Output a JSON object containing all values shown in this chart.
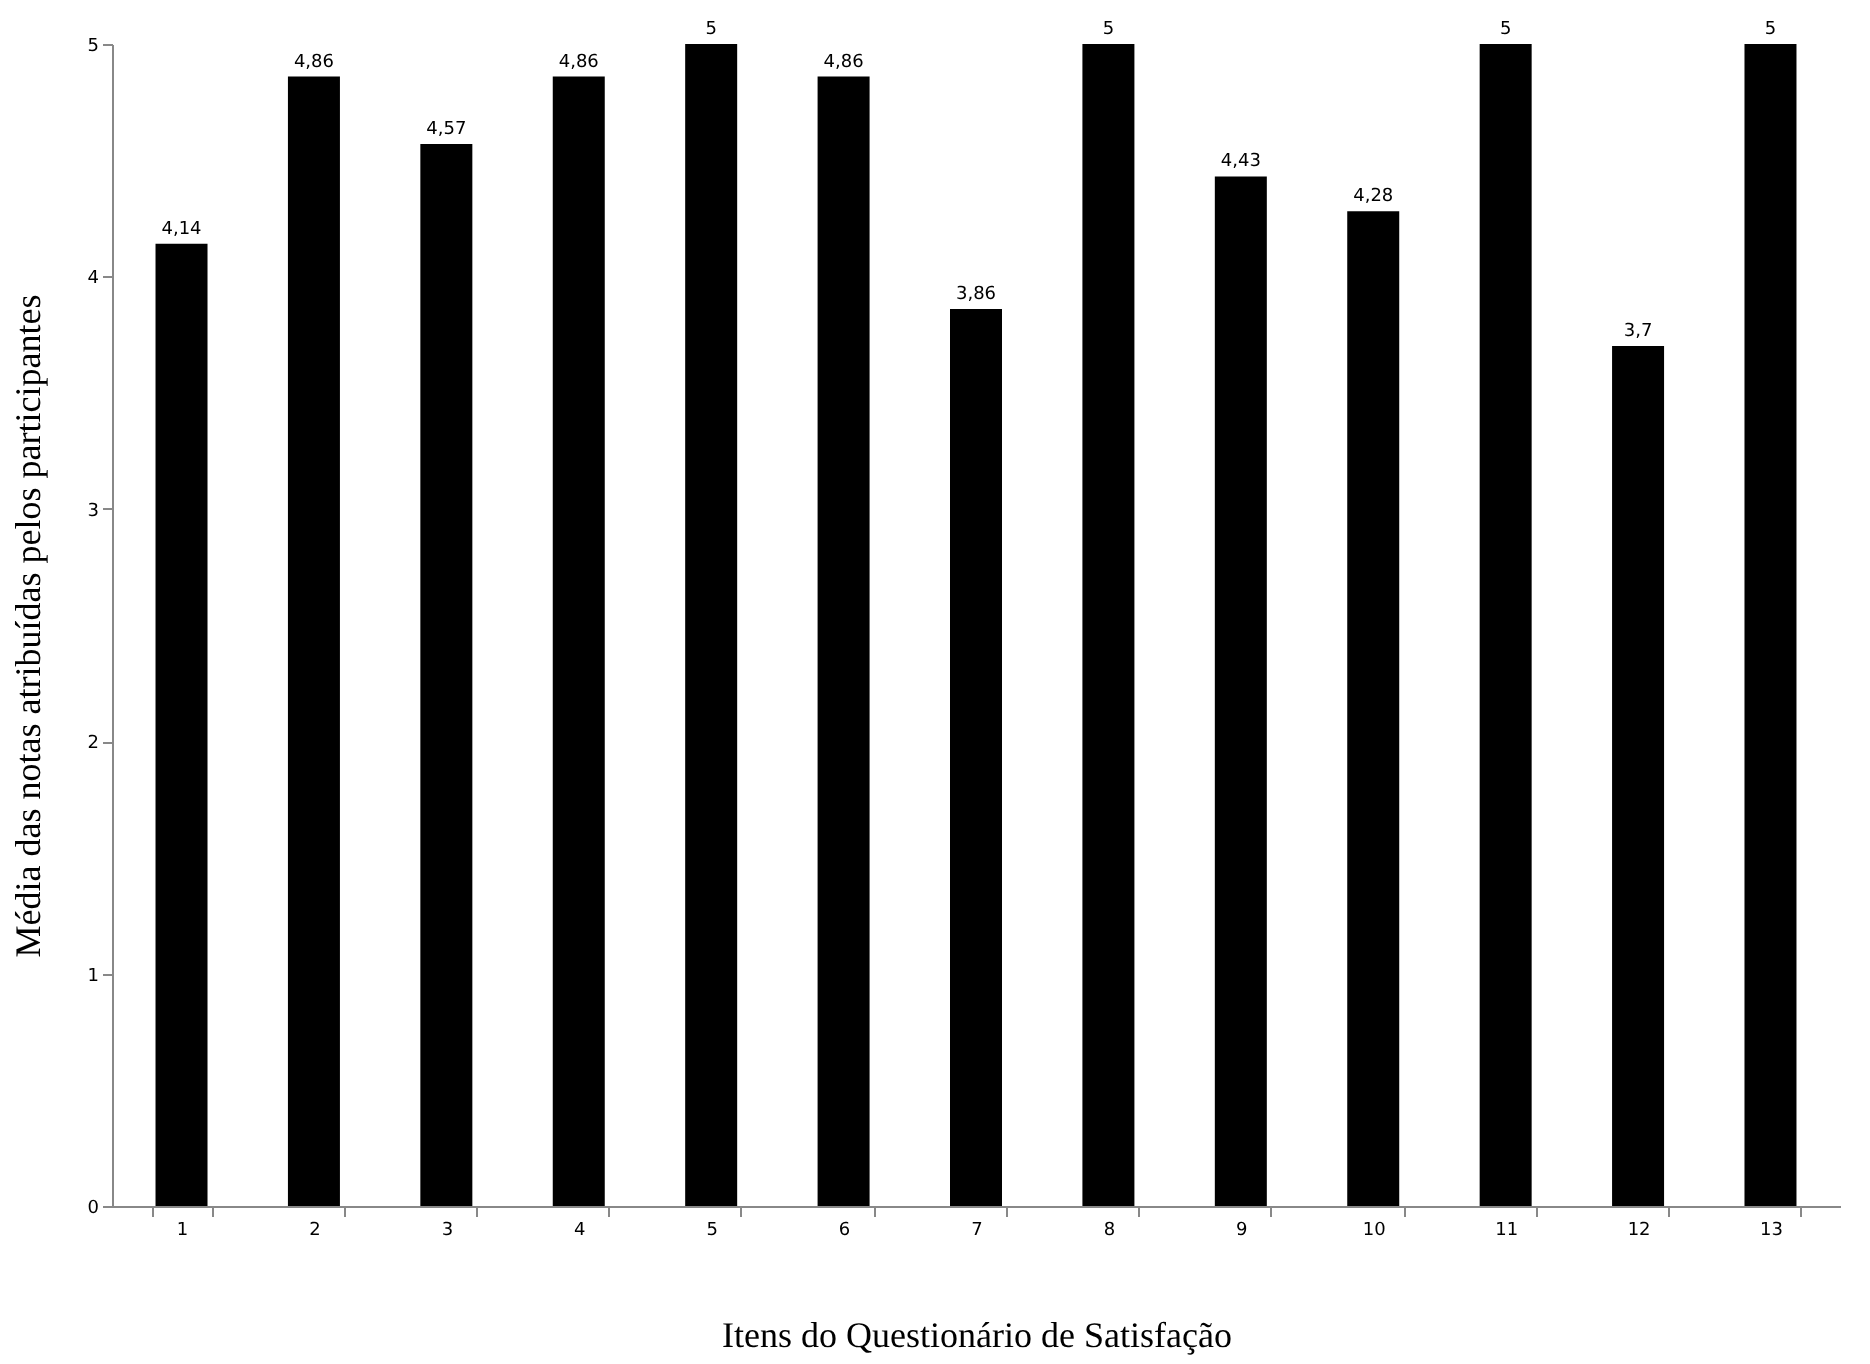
{
  "chart_data": {
    "type": "bar",
    "xlabel": "Itens do Questionário de Satisfação",
    "ylabel": "Média das notas atribuídas pelos participantes",
    "categories": [
      "1",
      "2",
      "3",
      "4",
      "5",
      "6",
      "7",
      "8",
      "9",
      "10",
      "11",
      "12",
      "13"
    ],
    "values": [
      4.14,
      4.86,
      4.57,
      4.86,
      5,
      4.86,
      3.86,
      5,
      4.43,
      4.28,
      5,
      3.7,
      5
    ],
    "value_labels": [
      "4,14",
      "4,86",
      "4,57",
      "4,86",
      "5",
      "4,86",
      "3,86",
      "5",
      "4,43",
      "4,28",
      "5",
      "3,7",
      "5"
    ],
    "color": "#000000",
    "ylim": [
      0,
      5
    ],
    "yticks": [
      0,
      1,
      2,
      3,
      4,
      5
    ],
    "grid": false
  }
}
